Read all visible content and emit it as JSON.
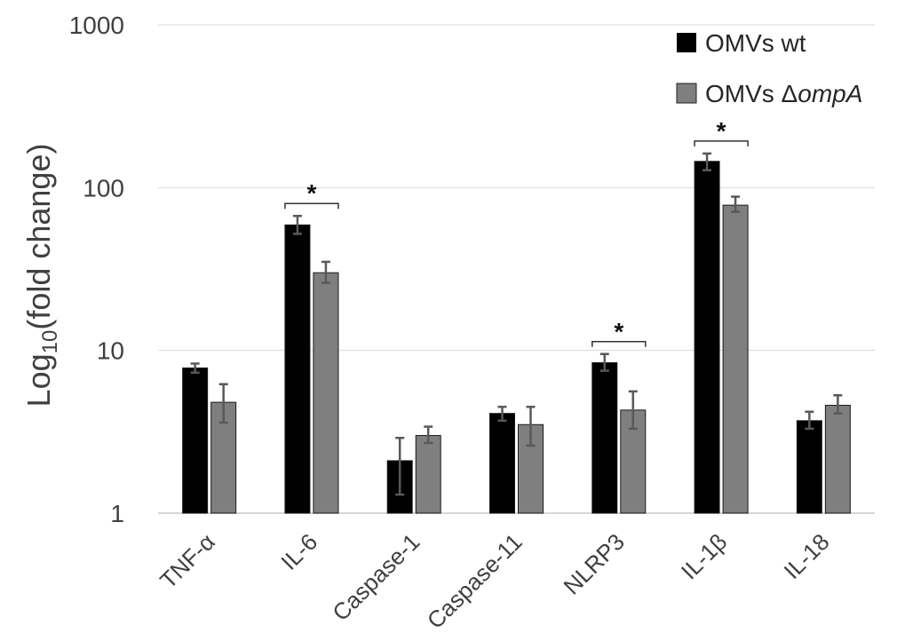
{
  "chart_data": {
    "type": "bar",
    "ylabel": "Log10(fold change)",
    "ylabel_parts": {
      "prefix": "Log",
      "subscript": "10",
      "suffix": "(fold change)"
    },
    "yscale": "log",
    "ylim": [
      1,
      1000
    ],
    "yticks": [
      "1",
      "10",
      "100",
      "1000"
    ],
    "grid": true,
    "legend_position": "top-right",
    "categories": [
      "TNF-α",
      "IL-6",
      "Caspase-1",
      "Caspase-11",
      "NLRP3",
      "IL-1β",
      "IL-18"
    ],
    "series": [
      {
        "name": "OMVs wt",
        "name_parts": {
          "prefix": "OMVs wt",
          "italic": ""
        },
        "color": "#000000",
        "values": [
          7.8,
          59,
          2.1,
          4.1,
          8.4,
          145,
          3.7
        ],
        "err_low": [
          7.3,
          52,
          1.3,
          3.7,
          7.5,
          128,
          3.3
        ],
        "err_high": [
          8.3,
          67,
          2.9,
          4.5,
          9.5,
          162,
          4.2
        ]
      },
      {
        "name": "OMVs ΔompA",
        "name_parts": {
          "prefix": "OMVs Δ",
          "italic": "ompA"
        },
        "color": "#7f7f7f",
        "values": [
          4.8,
          30,
          3.0,
          3.5,
          4.3,
          78,
          4.6
        ],
        "err_low": [
          3.6,
          26,
          2.7,
          2.6,
          3.3,
          71,
          4.1
        ],
        "err_high": [
          6.2,
          35,
          3.4,
          4.5,
          5.6,
          88,
          5.3
        ]
      }
    ],
    "significance": [
      {
        "category": "IL-6",
        "label": "*"
      },
      {
        "category": "NLRP3",
        "label": "*"
      },
      {
        "category": "IL-1β",
        "label": "*"
      }
    ]
  }
}
